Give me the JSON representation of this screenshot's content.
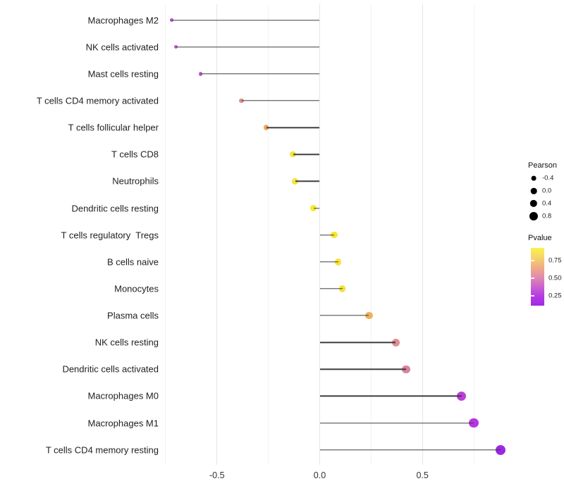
{
  "chart_data": {
    "type": "scatter",
    "variant": "horizontal lollipop (stem + point)",
    "title": "",
    "xlabel": "",
    "ylabel": "",
    "xlim": [
      -0.8,
      0.95
    ],
    "grid": "vertical only; major ticks at 0.5 steps, minor at 0.25 steps",
    "x_axis": {
      "tick_values": [
        -0.5,
        0.0,
        0.5
      ],
      "tick_labels": [
        "-0.5",
        "0.0",
        "0.5"
      ],
      "major_gridlines": [
        -0.5,
        0.0,
        0.5
      ],
      "minor_gridlines": [
        -0.75,
        -0.25,
        0.25,
        0.75
      ]
    },
    "rows": [
      {
        "label": "Macrophages M2",
        "pearson": -0.72,
        "color": "#b14fc5"
      },
      {
        "label": "NK cells activated",
        "pearson": -0.7,
        "color": "#bd53c8"
      },
      {
        "label": "Mast cells resting",
        "pearson": -0.58,
        "color": "#c55fc6"
      },
      {
        "label": "T cells CD4 memory activated",
        "pearson": -0.38,
        "color": "#db8b85"
      },
      {
        "label": "T cells follicular helper",
        "pearson": -0.26,
        "color": "#eeaa5e"
      },
      {
        "label": "T cells CD8",
        "pearson": -0.13,
        "color": "#f4e43c"
      },
      {
        "label": "Neutrophils",
        "pearson": -0.12,
        "color": "#f5e53a"
      },
      {
        "label": "Dendritic cells resting",
        "pearson": -0.03,
        "color": "#f8ea2d"
      },
      {
        "label": "T cells regulatory  Tregs",
        "pearson": 0.07,
        "color": "#f6e62e"
      },
      {
        "label": "B cells naive",
        "pearson": 0.09,
        "color": "#f6e435"
      },
      {
        "label": "Monocytes",
        "pearson": 0.11,
        "color": "#f4e13c"
      },
      {
        "label": "Plasma cells",
        "pearson": 0.24,
        "color": "#ecb25c"
      },
      {
        "label": "NK cells resting",
        "pearson": 0.37,
        "color": "#e08e90"
      },
      {
        "label": "Dendritic cells activated",
        "pearson": 0.42,
        "color": "#da829d"
      },
      {
        "label": "Macrophages M0",
        "pearson": 0.69,
        "color": "#bc3fd9"
      },
      {
        "label": "Macrophages M1",
        "pearson": 0.75,
        "color": "#b736e0"
      },
      {
        "label": "T cells CD4 memory resting",
        "pearson": 0.88,
        "color": "#9b28e4"
      }
    ],
    "legends": {
      "size": {
        "title": "Pearson",
        "values": [
          -0.4,
          0.0,
          0.4,
          0.8
        ],
        "labels": [
          "-0.4",
          "0.0",
          "0.4",
          "0.8"
        ],
        "symbol_color": "#000000"
      },
      "color": {
        "title": "Pvalue",
        "tick_values": [
          0.75,
          0.5,
          0.25
        ],
        "tick_labels": [
          "0.75",
          "0.50",
          "0.25"
        ],
        "gradient_stops": [
          "#f9f24b",
          "#f6d469",
          "#efad85",
          "#e18cab",
          "#cb63cf",
          "#b43be0",
          "#a228e8"
        ],
        "orientation": "yellow at top (high p) to purple at bottom (low p)"
      }
    },
    "legend_position": "right"
  }
}
